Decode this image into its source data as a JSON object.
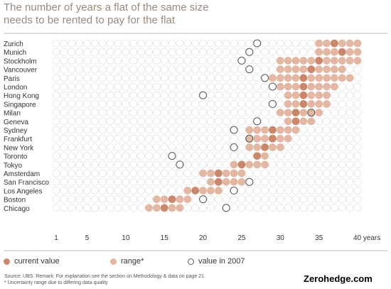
{
  "chart_data": {
    "type": "scatter",
    "title": "The number of years a flat of the same size\nneeds to be rented to pay for the flat",
    "xlim": [
      1,
      40
    ],
    "x_ticks": [
      "1",
      "5",
      "10",
      "15",
      "20",
      "25",
      "30",
      "35",
      "40 years"
    ],
    "x_tick_values": [
      1,
      5,
      10,
      15,
      20,
      25,
      30,
      35,
      40
    ],
    "categories": [
      "Zurich",
      "Munich",
      "Stockholm",
      "Vancouver",
      "Paris",
      "London",
      "Hong Kong",
      "Singapore",
      "Milan",
      "Geneva",
      "Sydney",
      "Frankfurt",
      "New York",
      "Toronto",
      "Tokyo",
      "Amsterdam",
      "San Francisco",
      "Los Angeles",
      "Boston",
      "Chicago"
    ],
    "series": [
      {
        "name": "current value",
        "values": [
          37,
          38,
          35,
          34,
          33,
          33,
          33,
          33,
          32,
          32,
          29,
          29,
          28,
          27,
          25,
          22,
          22,
          19,
          16,
          15
        ]
      },
      {
        "name": "range*",
        "ranges": [
          [
            35,
            40
          ],
          [
            35,
            40
          ],
          [
            30,
            40
          ],
          [
            30,
            38
          ],
          [
            29,
            39
          ],
          [
            30,
            37
          ],
          [
            31,
            36
          ],
          [
            31,
            36
          ],
          [
            30,
            35
          ],
          [
            31,
            34
          ],
          [
            26,
            32
          ],
          [
            26,
            31
          ],
          [
            26,
            30
          ],
          [
            27,
            28
          ],
          [
            24,
            28
          ],
          [
            20,
            25
          ],
          [
            21,
            25
          ],
          [
            18,
            22
          ],
          [
            14,
            18
          ],
          [
            13,
            17
          ]
        ]
      },
      {
        "name": "value in 2007",
        "values": [
          27,
          26,
          25,
          26,
          28,
          29,
          20,
          29,
          34,
          27,
          24,
          26,
          24,
          16,
          17,
          null,
          26,
          24,
          20,
          23
        ]
      }
    ],
    "legend": {
      "position": "bottom-left",
      "current_value": "current value",
      "range": "range*",
      "value_2007": "value in 2007"
    },
    "colors": {
      "current": "#c9876b",
      "range": "#e2b7a4",
      "background": "#e4e4e4",
      "value_2007": "#555555"
    }
  },
  "footer": {
    "source": "Source: UBS. Remark: For explanation see the section on Methodology & data on page 21.",
    "note": "* Uncertainty range due to differing data quality",
    "brand": "Zerohedge.com"
  }
}
